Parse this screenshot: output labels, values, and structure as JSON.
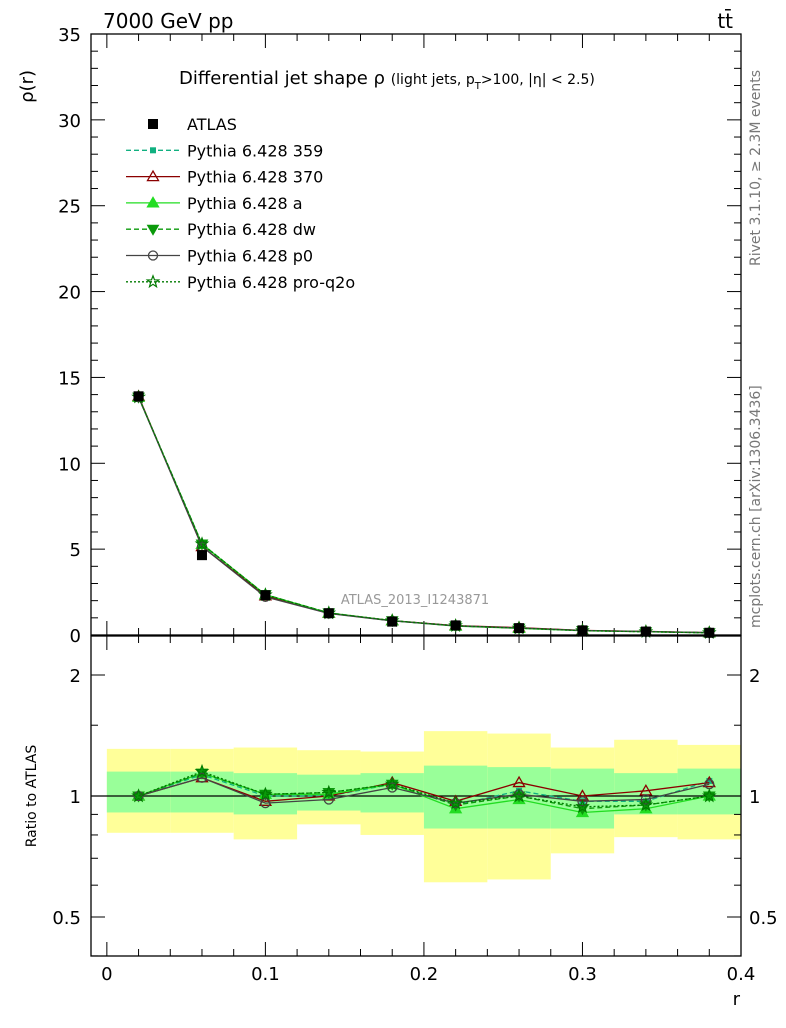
{
  "header": {
    "left": "7000 GeV pp",
    "right": "tt̄",
    "side_top": "Rivet 3.1.10, ≥ 2.3M events",
    "side_bottom": "mcplots.cern.ch [arXiv:1306.3436]"
  },
  "chart_data": [
    {
      "type": "line",
      "title_main": "Differential jet shape ρ",
      "title_sub": "(light jets, p",
      "title_sub_t": "T",
      "title_sub_end": ">100, |η| < 2.5)",
      "ylabel": "ρ(r)",
      "xlabel": "r",
      "xlim": [
        -0.01,
        0.4
      ],
      "ylim": [
        0,
        35
      ],
      "yticks": [
        0,
        5,
        10,
        15,
        20,
        25,
        30,
        35
      ],
      "watermark": "ATLAS_2013_I1243871",
      "x": [
        0.02,
        0.06,
        0.1,
        0.14,
        0.18,
        0.22,
        0.26,
        0.3,
        0.34,
        0.38
      ],
      "data": {
        "name": "ATLAS",
        "values": [
          13.9,
          4.65,
          2.32,
          1.27,
          0.78,
          0.56,
          0.4,
          0.27,
          0.2,
          0.13
        ]
      },
      "series": [
        {
          "name": "Pythia 6.428 359",
          "color": "#10b080",
          "style": "dashed",
          "marker": "square-small",
          "values": [
            13.85,
            5.25,
            2.32,
            1.27,
            0.83,
            0.53,
            0.41,
            0.26,
            0.2,
            0.14
          ]
        },
        {
          "name": "Pythia 6.428 370",
          "color": "#8b0000",
          "style": "solid",
          "marker": "triangle-open",
          "values": [
            13.9,
            5.15,
            2.28,
            1.27,
            0.84,
            0.55,
            0.43,
            0.27,
            0.21,
            0.14
          ]
        },
        {
          "name": "Pythia 6.428 a",
          "color": "#22dd22",
          "style": "solid",
          "marker": "triangle-filled",
          "values": [
            13.85,
            5.28,
            2.35,
            1.28,
            0.83,
            0.52,
            0.39,
            0.25,
            0.19,
            0.13
          ]
        },
        {
          "name": "Pythia 6.428 dw",
          "color": "#0a9a0a",
          "style": "dashed",
          "marker": "triangle-down",
          "values": [
            13.85,
            5.3,
            2.35,
            1.29,
            0.83,
            0.53,
            0.4,
            0.26,
            0.19,
            0.13
          ]
        },
        {
          "name": "Pythia 6.428 p0",
          "color": "#444444",
          "style": "solid",
          "marker": "circle-open",
          "values": [
            13.85,
            5.15,
            2.22,
            1.25,
            0.82,
            0.53,
            0.41,
            0.26,
            0.2,
            0.14
          ]
        },
        {
          "name": "Pythia 6.428 pro-q2o",
          "color": "#007a00",
          "style": "dotted",
          "marker": "star",
          "values": [
            13.85,
            5.3,
            2.34,
            1.28,
            0.83,
            0.54,
            0.4,
            0.25,
            0.19,
            0.13
          ]
        }
      ]
    },
    {
      "type": "line",
      "ylabel": "Ratio to ATLAS",
      "xlabel": "r",
      "xlim": [
        -0.01,
        0.4
      ],
      "ylim": [
        0.35,
        2.3
      ],
      "yticks": [
        0.5,
        1,
        2
      ],
      "ytick_labels": [
        "0.5",
        "1",
        "2"
      ],
      "xticks": [
        0,
        0.1,
        0.2,
        0.3,
        0.4
      ],
      "xtick_labels": [
        "0",
        "0.1",
        "0.2",
        "0.3",
        "0.4"
      ],
      "bins": [
        [
          0.0,
          0.04
        ],
        [
          0.04,
          0.08
        ],
        [
          0.08,
          0.12
        ],
        [
          0.12,
          0.16
        ],
        [
          0.16,
          0.2
        ],
        [
          0.2,
          0.24
        ],
        [
          0.24,
          0.28
        ],
        [
          0.28,
          0.32
        ],
        [
          0.32,
          0.36
        ],
        [
          0.36,
          0.4
        ]
      ],
      "band_stat": [
        [
          0.91,
          1.15
        ],
        [
          0.91,
          1.15
        ],
        [
          0.9,
          1.14
        ],
        [
          0.92,
          1.13
        ],
        [
          0.91,
          1.14
        ],
        [
          0.83,
          1.19
        ],
        [
          0.83,
          1.18
        ],
        [
          0.83,
          1.17
        ],
        [
          0.9,
          1.14
        ],
        [
          0.9,
          1.17
        ]
      ],
      "band_total": [
        [
          0.81,
          1.31
        ],
        [
          0.81,
          1.31
        ],
        [
          0.78,
          1.32
        ],
        [
          0.85,
          1.3
        ],
        [
          0.8,
          1.29
        ],
        [
          0.61,
          1.45
        ],
        [
          0.62,
          1.43
        ],
        [
          0.72,
          1.32
        ],
        [
          0.79,
          1.38
        ],
        [
          0.78,
          1.34
        ]
      ],
      "series": [
        {
          "name": "Pythia 6.428 359",
          "values": [
            1.0,
            1.13,
            1.0,
            1.0,
            1.07,
            0.95,
            1.03,
            0.97,
            0.97,
            1.09
          ]
        },
        {
          "name": "Pythia 6.428 370",
          "values": [
            1.0,
            1.11,
            0.97,
            1.0,
            1.08,
            0.97,
            1.08,
            1.0,
            1.03,
            1.08
          ]
        },
        {
          "name": "Pythia 6.428 a",
          "values": [
            1.0,
            1.14,
            1.01,
            1.01,
            1.07,
            0.93,
            0.98,
            0.91,
            0.93,
            1.0
          ]
        },
        {
          "name": "Pythia 6.428 dw",
          "values": [
            1.0,
            1.14,
            1.01,
            1.02,
            1.07,
            0.95,
            1.0,
            0.93,
            0.95,
            1.0
          ]
        },
        {
          "name": "Pythia 6.428 p0",
          "values": [
            1.0,
            1.11,
            0.96,
            0.98,
            1.05,
            0.96,
            1.01,
            0.97,
            0.98,
            1.07
          ]
        },
        {
          "name": "Pythia 6.428 pro-q2o",
          "values": [
            1.0,
            1.15,
            1.01,
            1.02,
            1.07,
            0.96,
            1.0,
            0.94,
            0.95,
            1.0
          ]
        }
      ]
    }
  ]
}
